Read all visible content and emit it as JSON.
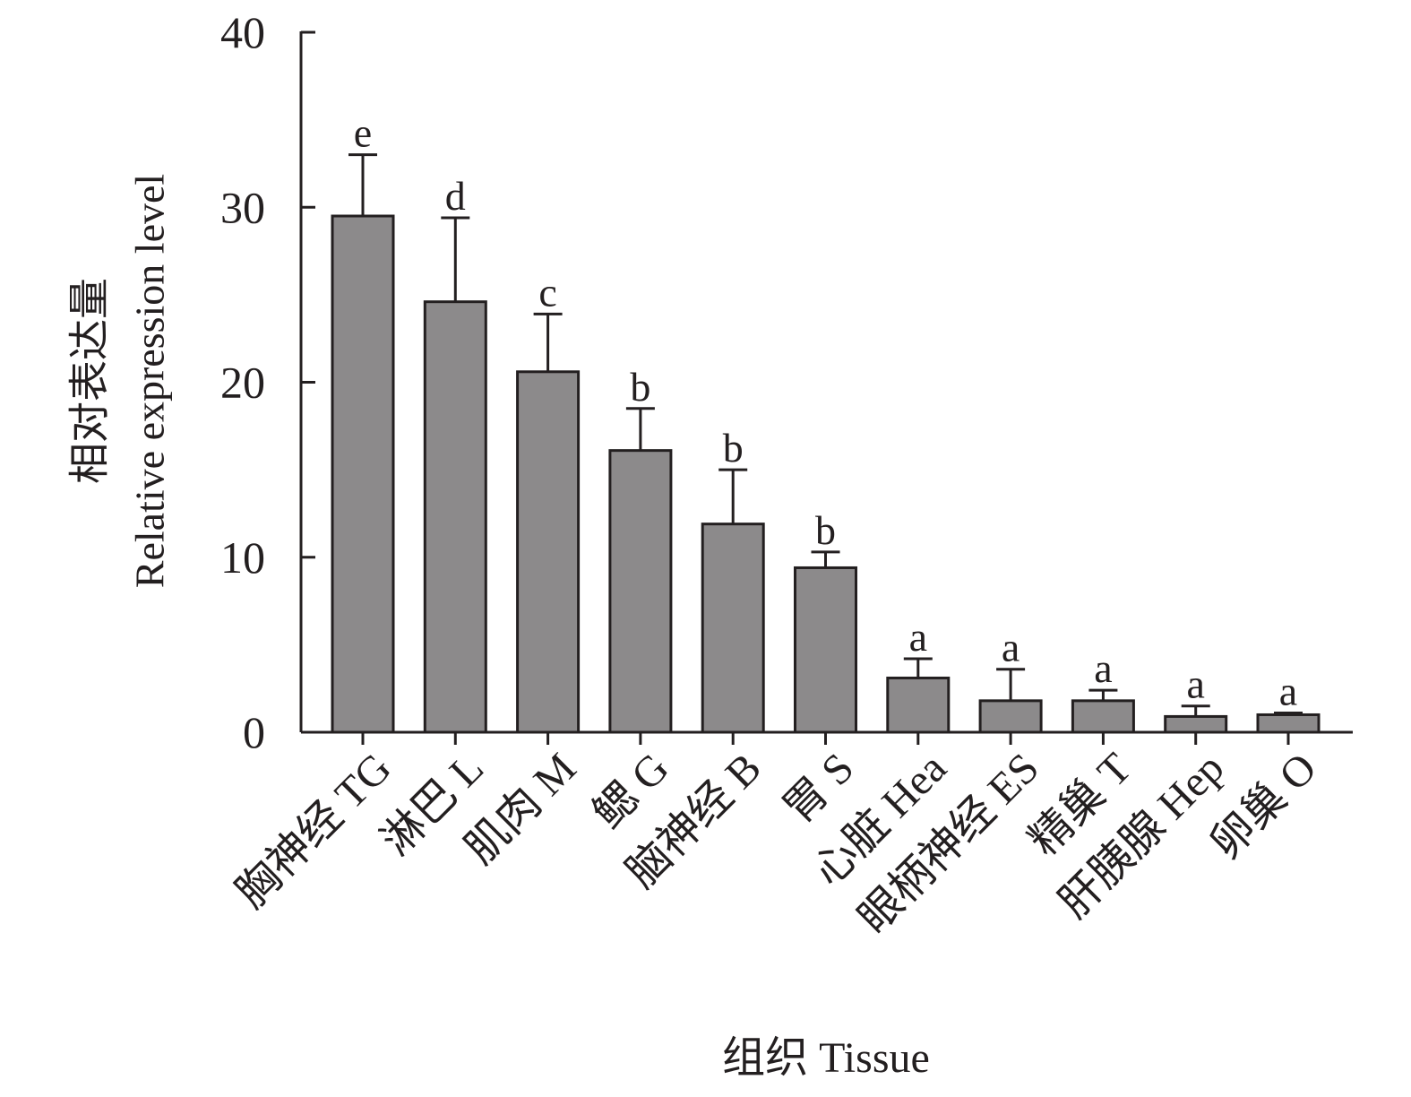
{
  "chart_data": {
    "type": "bar",
    "xlabel": "组织 Tissue",
    "ylabel_cn": "相对表达量",
    "ylabel_en": "Relative expression level",
    "ylim": [
      0,
      40
    ],
    "yticks": [
      "0",
      "10",
      "20",
      "30",
      "40"
    ],
    "ytick_values": [
      0,
      10,
      20,
      30,
      40
    ],
    "categories": [
      "胸神经 TG",
      "淋巴 L",
      "肌肉 M",
      "鳃 G",
      "脑神经 B",
      "胃 S",
      "心脏 Hea",
      "眼柄神经 ES",
      "精巢 T",
      "肝胰腺 Hep",
      "卵巢 O"
    ],
    "values": [
      29.5,
      24.6,
      20.6,
      16.1,
      11.9,
      9.4,
      3.1,
      1.8,
      1.8,
      0.9,
      1.0
    ],
    "errors": [
      3.5,
      4.8,
      3.3,
      2.4,
      3.1,
      0.9,
      1.1,
      1.8,
      0.6,
      0.6,
      0.1
    ],
    "significance": [
      "e",
      "d",
      "c",
      "b",
      "b",
      "b",
      "a",
      "a",
      "a",
      "a",
      "a"
    ],
    "colors": {
      "bar": "#8c8a8b",
      "axis": "#231f20"
    },
    "grid": false,
    "legend": "none"
  }
}
